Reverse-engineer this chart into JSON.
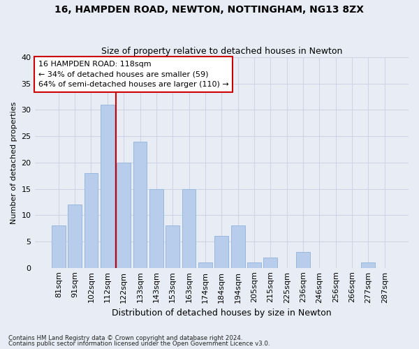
{
  "title1": "16, HAMPDEN ROAD, NEWTON, NOTTINGHAM, NG13 8ZX",
  "title2": "Size of property relative to detached houses in Newton",
  "xlabel": "Distribution of detached houses by size in Newton",
  "ylabel": "Number of detached properties",
  "categories": [
    "81sqm",
    "91sqm",
    "102sqm",
    "112sqm",
    "122sqm",
    "133sqm",
    "143sqm",
    "153sqm",
    "163sqm",
    "174sqm",
    "184sqm",
    "194sqm",
    "205sqm",
    "215sqm",
    "225sqm",
    "236sqm",
    "246sqm",
    "256sqm",
    "266sqm",
    "277sqm",
    "287sqm"
  ],
  "values": [
    8,
    12,
    18,
    31,
    20,
    24,
    15,
    8,
    15,
    1,
    6,
    8,
    1,
    2,
    0,
    3,
    0,
    0,
    0,
    1,
    0
  ],
  "bar_color": "#b8cceb",
  "bar_edge_color": "#9ab8df",
  "grid_color": "#cdd5e5",
  "bg_color": "#e8edf5",
  "annotation_box_text": "16 HAMPDEN ROAD: 118sqm\n← 34% of detached houses are smaller (59)\n64% of semi-detached houses are larger (110) →",
  "vline_x": 3.5,
  "vline_color": "#cc0000",
  "footnote1": "Contains HM Land Registry data © Crown copyright and database right 2024.",
  "footnote2": "Contains public sector information licensed under the Open Government Licence v3.0.",
  "ylim": [
    0,
    40
  ],
  "yticks": [
    0,
    5,
    10,
    15,
    20,
    25,
    30,
    35,
    40
  ],
  "title1_fontsize": 10,
  "title2_fontsize": 9,
  "ylabel_fontsize": 8,
  "xlabel_fontsize": 9,
  "tick_fontsize": 8,
  "annot_fontsize": 8
}
